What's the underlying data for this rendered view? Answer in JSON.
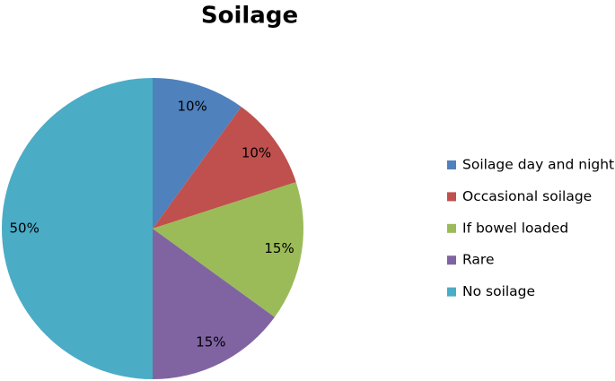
{
  "chart_data": {
    "type": "pie",
    "title": "Soilage",
    "categories": [
      "Soilage day and night",
      "Occasional soilage",
      "If bowel loaded",
      "Rare",
      "No soilage"
    ],
    "values": [
      10,
      10,
      15,
      15,
      50
    ],
    "value_labels": [
      "10%",
      "10%",
      "15%",
      "15%",
      "50%"
    ],
    "colors": [
      "#4f81bd",
      "#c0504d",
      "#9bbb59",
      "#8064a2",
      "#4bacc6"
    ],
    "legend": "right"
  }
}
